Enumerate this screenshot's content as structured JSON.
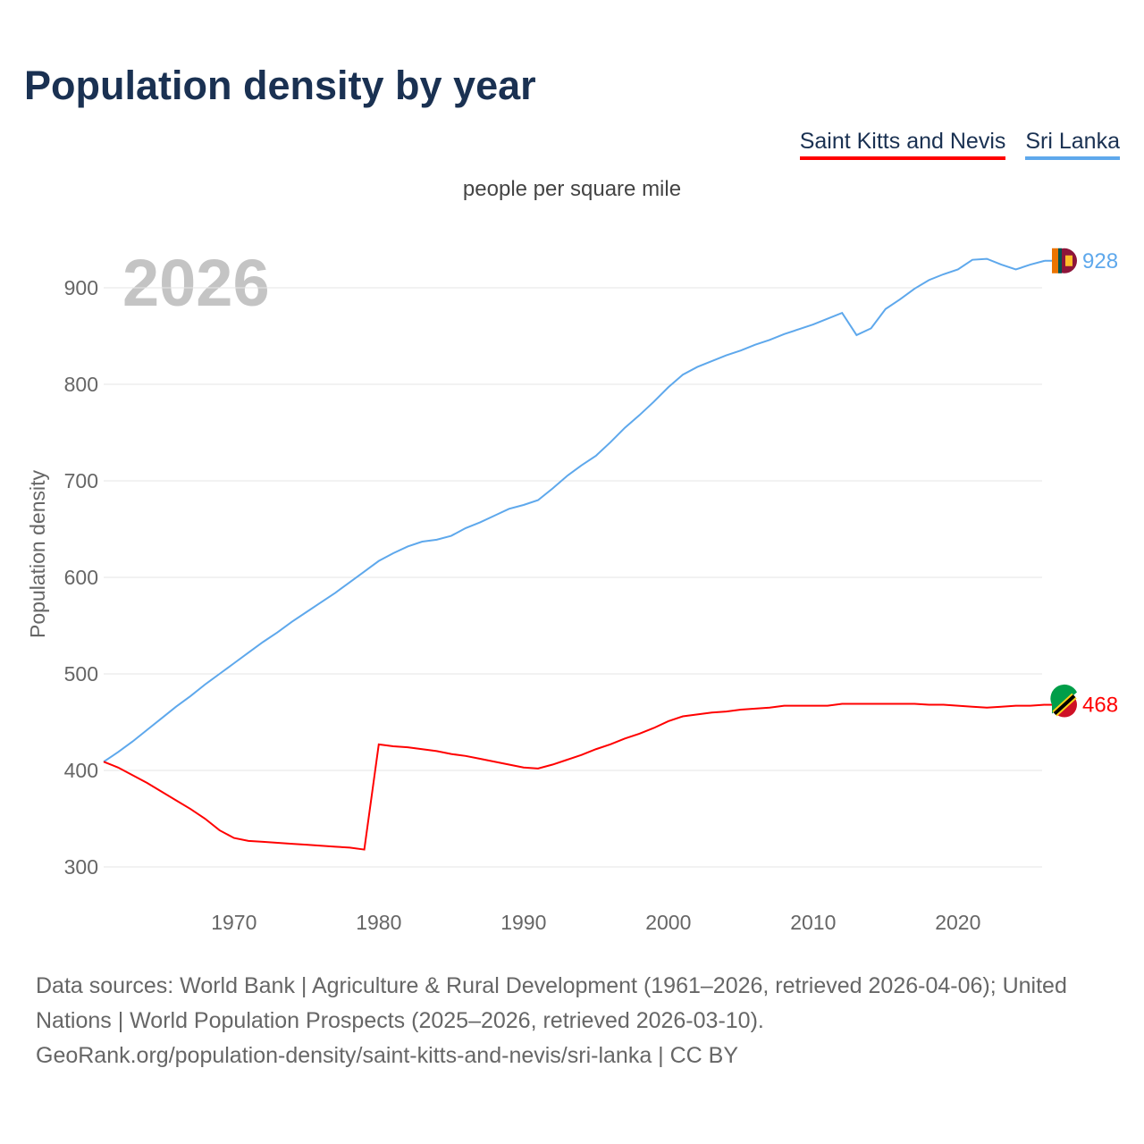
{
  "title": "Population density by year",
  "subtitle": "people per square mile",
  "year_label": "2026",
  "legend": [
    {
      "label": "Saint Kitts and Nevis",
      "color": "#ff0000"
    },
    {
      "label": "Sri Lanka",
      "color": "#5ea8ec"
    }
  ],
  "footer": {
    "line1": "Data sources: World Bank | Agriculture & Rural Development (1961–2026, retrieved 2026-04-06); United Nations | World Population Prospects (2025–2026, retrieved 2026-03-10).",
    "line2": "GeoRank.org/population-density/saint-kitts-and-nevis/sri-lanka | CC BY"
  },
  "chart_data": {
    "type": "line",
    "title": "Population density by year",
    "xlabel": "",
    "ylabel": "Population density",
    "xlim": [
      1961,
      2026
    ],
    "ylim": [
      280,
      960
    ],
    "xticks": [
      1970,
      1980,
      1990,
      2000,
      2010,
      2020
    ],
    "yticks": [
      300,
      400,
      500,
      600,
      700,
      800,
      900
    ],
    "grid": true,
    "x_start": 1961,
    "series": [
      {
        "name": "Sri Lanka",
        "color": "#5ea8ec",
        "end_label": "928",
        "values": [
          409,
          419,
          430,
          442,
          454,
          466,
          477,
          489,
          500,
          511,
          522,
          533,
          543,
          554,
          564,
          574,
          584,
          595,
          606,
          617,
          625,
          632,
          637,
          639,
          643,
          651,
          657,
          664,
          671,
          675,
          680,
          692,
          705,
          716,
          726,
          740,
          755,
          768,
          782,
          797,
          810,
          818,
          824,
          830,
          835,
          841,
          846,
          852,
          857,
          862,
          868,
          874,
          851,
          858,
          878,
          888,
          899,
          908,
          914,
          919,
          929,
          930,
          924,
          919,
          924,
          928
        ]
      },
      {
        "name": "Saint Kitts and Nevis",
        "color": "#ff0000",
        "end_label": "468",
        "values": [
          409,
          403,
          395,
          387,
          378,
          369,
          360,
          350,
          338,
          330,
          327,
          326,
          325,
          324,
          323,
          322,
          321,
          320,
          318,
          427,
          425,
          424,
          422,
          420,
          417,
          415,
          412,
          409,
          406,
          403,
          402,
          406,
          411,
          416,
          422,
          427,
          433,
          438,
          444,
          451,
          456,
          458,
          460,
          461,
          463,
          464,
          465,
          467,
          467,
          467,
          467,
          469,
          469,
          469,
          469,
          469,
          469,
          468,
          468,
          467,
          466,
          465,
          466,
          467,
          467,
          468
        ]
      }
    ]
  }
}
